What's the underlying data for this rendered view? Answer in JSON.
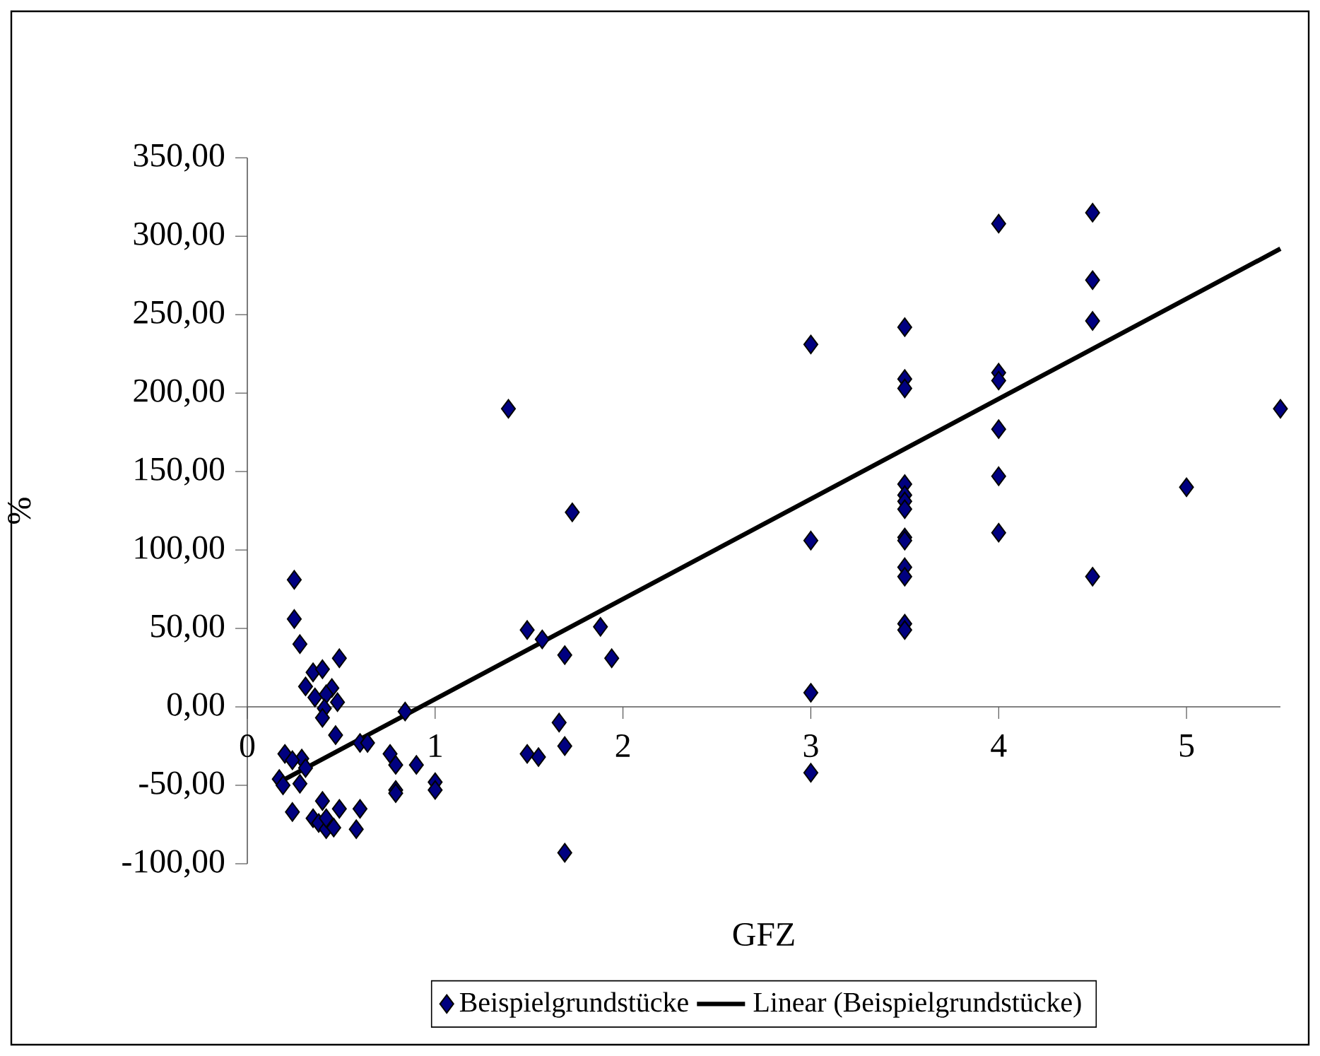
{
  "chart_data": {
    "type": "scatter",
    "xlabel": "GFZ",
    "ylabel": "%",
    "xlim": [
      0,
      5.5
    ],
    "ylim": [
      -100,
      350
    ],
    "xticks": [
      0,
      1,
      2,
      3,
      4,
      5
    ],
    "yticks": [
      {
        "value": -100,
        "label": "-100,00"
      },
      {
        "value": -50,
        "label": "-50,00"
      },
      {
        "value": 0,
        "label": "0,00"
      },
      {
        "value": 50,
        "label": "50,00"
      },
      {
        "value": 100,
        "label": "100,00"
      },
      {
        "value": 150,
        "label": "150,00"
      },
      {
        "value": 200,
        "label": "200,00"
      },
      {
        "value": 250,
        "label": "250,00"
      },
      {
        "value": 300,
        "label": "300,00"
      },
      {
        "value": 350,
        "label": "350,00"
      }
    ],
    "grid": false,
    "legend": "bottom",
    "marker": "diamond",
    "series": [
      {
        "name": "Beispielgrundstücke",
        "type": "scatter",
        "color": "#000080",
        "x": [
          0.25,
          0.25,
          0.28,
          0.49,
          0.35,
          0.4,
          0.31,
          0.45,
          0.36,
          0.42,
          0.48,
          0.41,
          0.4,
          0.47,
          0.84,
          0.6,
          0.64,
          0.2,
          0.29,
          0.24,
          0.31,
          0.76,
          0.79,
          0.9,
          1.0,
          1.0,
          0.79,
          0.79,
          0.17,
          0.19,
          0.28,
          0.24,
          0.4,
          0.35,
          0.49,
          0.6,
          0.38,
          0.42,
          0.46,
          0.58,
          0.42,
          1.39,
          1.73,
          1.49,
          1.57,
          1.88,
          1.69,
          1.94,
          3,
          3,
          3,
          3,
          1.66,
          1.69,
          1.49,
          1.55,
          1.69,
          3.5,
          3.5,
          3.5,
          3.5,
          3.5,
          3.5,
          3.5,
          3.5,
          3.5,
          3.5,
          3.5,
          3.5,
          3.5,
          4,
          4,
          4,
          4,
          4,
          4,
          4.5,
          4.5,
          4.5,
          4.5,
          5,
          5.5
        ],
        "values": [
          81,
          56,
          40,
          31,
          22,
          24,
          13,
          12,
          6,
          8,
          3,
          -1,
          -7,
          -18,
          -3,
          -23,
          -23,
          -30,
          -33,
          -34,
          -39,
          -30,
          -37,
          -37,
          -48,
          -53,
          -53,
          -55,
          -46,
          -50,
          -49,
          -67,
          -60,
          -71,
          -65,
          -65,
          -74,
          -78,
          -77,
          -78,
          -71,
          190,
          124,
          49,
          43,
          51,
          33,
          31,
          231,
          106,
          9,
          -42,
          -10,
          -25,
          -30,
          -32,
          -93,
          242,
          209,
          203,
          142,
          135,
          131,
          126,
          108,
          106,
          89,
          83,
          53,
          49,
          308,
          213,
          208,
          177,
          147,
          111,
          315,
          272,
          246,
          83,
          140,
          190
        ]
      },
      {
        "name": "Linear (Beispielgrundstücke)",
        "type": "line",
        "color": "#000000",
        "marker": "none",
        "line_style": "solid",
        "x": [
          0.17,
          5.5
        ],
        "values": [
          -48,
          292
        ]
      }
    ]
  }
}
